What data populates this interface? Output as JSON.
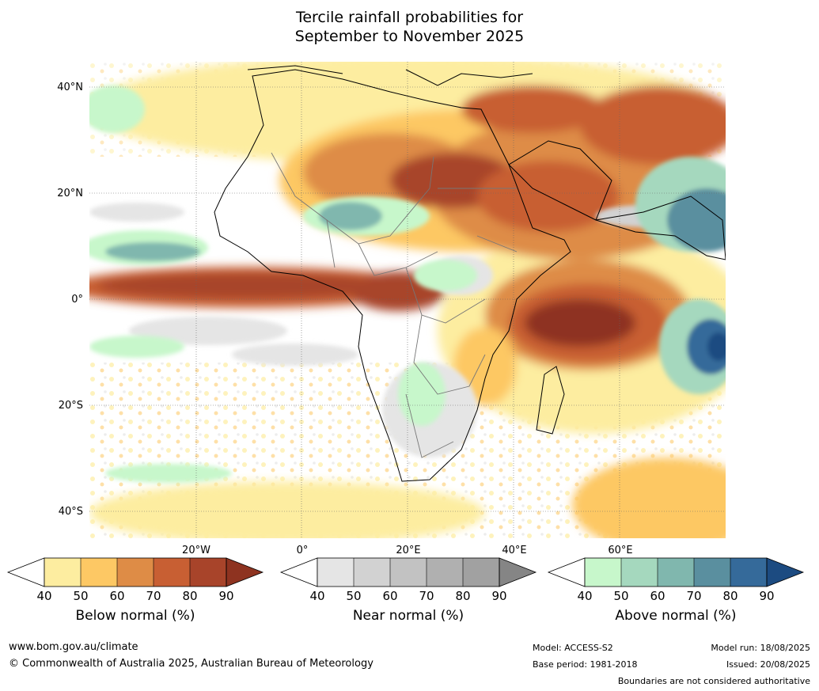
{
  "title": {
    "line1": "Tercile rainfall probabilities for",
    "line2": "September to November 2025"
  },
  "map": {
    "lat_labels": [
      "40°N",
      "20°N",
      "0°",
      "20°S",
      "40°S"
    ],
    "lon_labels": [
      "20°W",
      "0°",
      "20°E",
      "40°E",
      "60°E"
    ],
    "colors": {
      "below": [
        "#fdeda0",
        "#fdc864",
        "#de8c46",
        "#c85f33",
        "#a8442a",
        "#8e3320"
      ],
      "near": [
        "#e5e5e5",
        "#d2d2d2",
        "#c2c2c2",
        "#b0b0b0",
        "#a1a1a1",
        "#858585"
      ],
      "above": [
        "#c7f7cb",
        "#a5d8be",
        "#80b7ae",
        "#5a8f9f",
        "#356a9a",
        "#1c4b81"
      ]
    }
  },
  "colorbars": {
    "ticks": [
      "40",
      "50",
      "60",
      "70",
      "80",
      "90"
    ],
    "below_label": "Below normal (%)",
    "near_label": "Near normal (%)",
    "above_label": "Above normal (%)"
  },
  "footer": {
    "url": "www.bom.gov.au/climate",
    "copyright": "© Commonwealth of Australia 2025, Australian Bureau of Meteorology",
    "model": "Model: ACCESS-S2",
    "base_period": "Base period: 1981-2018",
    "model_run": "Model run: 18/08/2025",
    "issued": "Issued: 20/08/2025",
    "disclaimer": "Boundaries are not considered authoritative"
  }
}
